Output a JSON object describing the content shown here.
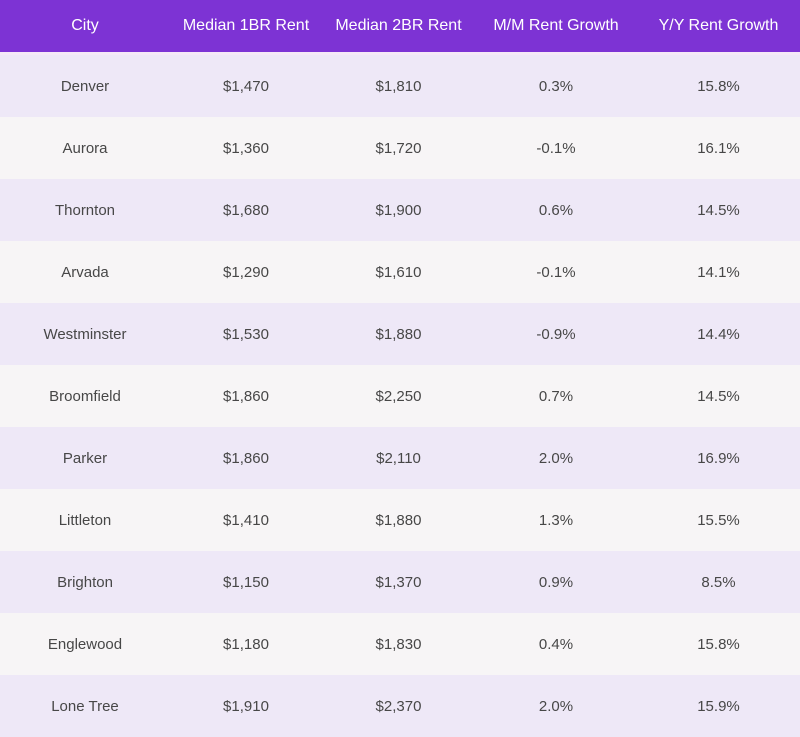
{
  "chart_data": {
    "type": "table",
    "title": "",
    "columns": [
      "City",
      "Median 1BR Rent",
      "Median 2BR Rent",
      "M/M Rent Growth",
      "Y/Y Rent Growth"
    ],
    "rows": [
      {
        "city": "Denver",
        "rent_1br": "$1,470",
        "rent_2br": "$1,810",
        "mm_growth": "0.3%",
        "yy_growth": "15.8%"
      },
      {
        "city": "Aurora",
        "rent_1br": "$1,360",
        "rent_2br": "$1,720",
        "mm_growth": "-0.1%",
        "yy_growth": "16.1%"
      },
      {
        "city": "Thornton",
        "rent_1br": "$1,680",
        "rent_2br": "$1,900",
        "mm_growth": "0.6%",
        "yy_growth": "14.5%"
      },
      {
        "city": "Arvada",
        "rent_1br": "$1,290",
        "rent_2br": "$1,610",
        "mm_growth": "-0.1%",
        "yy_growth": "14.1%"
      },
      {
        "city": "Westminster",
        "rent_1br": "$1,530",
        "rent_2br": "$1,880",
        "mm_growth": "-0.9%",
        "yy_growth": "14.4%"
      },
      {
        "city": "Broomfield",
        "rent_1br": "$1,860",
        "rent_2br": "$2,250",
        "mm_growth": "0.7%",
        "yy_growth": "14.5%"
      },
      {
        "city": "Parker",
        "rent_1br": "$1,860",
        "rent_2br": "$2,110",
        "mm_growth": "2.0%",
        "yy_growth": "16.9%"
      },
      {
        "city": "Littleton",
        "rent_1br": "$1,410",
        "rent_2br": "$1,880",
        "mm_growth": "1.3%",
        "yy_growth": "15.5%"
      },
      {
        "city": "Brighton",
        "rent_1br": "$1,150",
        "rent_2br": "$1,370",
        "mm_growth": "0.9%",
        "yy_growth": "8.5%"
      },
      {
        "city": "Englewood",
        "rent_1br": "$1,180",
        "rent_2br": "$1,830",
        "mm_growth": "0.4%",
        "yy_growth": "15.8%"
      },
      {
        "city": "Lone Tree",
        "rent_1br": "$1,910",
        "rent_2br": "$2,370",
        "mm_growth": "2.0%",
        "yy_growth": "15.9%"
      }
    ],
    "colors": {
      "header_bg": "#7d33d4",
      "header_text": "#ffffff",
      "row_odd_bg": "#eee8f7",
      "row_even_bg": "#f7f5f6",
      "cell_text": "#474747",
      "header_separator": "#f5e9f7"
    }
  }
}
